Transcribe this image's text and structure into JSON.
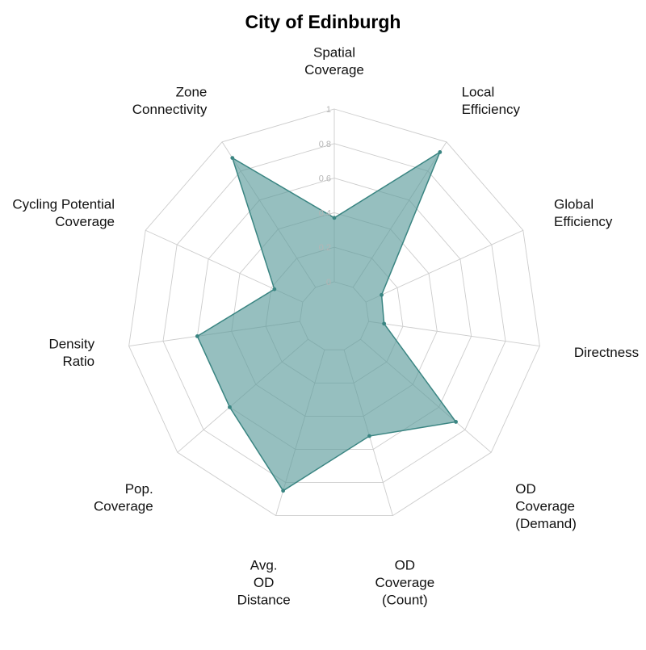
{
  "chart_data": {
    "type": "radar",
    "title": "City of Edinburgh",
    "axes": [
      [
        "Spatial",
        "Coverage"
      ],
      [
        "Local",
        "Efficiency"
      ],
      [
        "Global",
        "Efficiency"
      ],
      [
        "Directness"
      ],
      [
        "OD",
        "Coverage",
        "(Demand)"
      ],
      [
        "OD",
        "Coverage",
        "(Count)"
      ],
      [
        "Avg.",
        "OD",
        "Distance"
      ],
      [
        "Pop.",
        "Coverage"
      ],
      [
        "Density",
        "Ratio"
      ],
      [
        "Cycling Potential",
        "Coverage"
      ],
      [
        "Zone",
        "Connectivity"
      ]
    ],
    "series": [
      {
        "values": [
          0.37,
          0.93,
          0.1,
          0.09,
          0.73,
          0.52,
          0.85,
          0.6,
          0.6,
          0.18,
          0.89
        ]
      }
    ],
    "ticks": [
      "0",
      "0.2",
      "0.4",
      "0.6",
      "0.8",
      "1"
    ],
    "rlim": [
      0,
      1
    ],
    "grid": true,
    "legend": "none",
    "colors": {
      "series_stroke": "#3a8582",
      "series_fill": "#5e9c9c",
      "grid": "#cccccc",
      "tick_text": "#b5b5b5"
    }
  }
}
